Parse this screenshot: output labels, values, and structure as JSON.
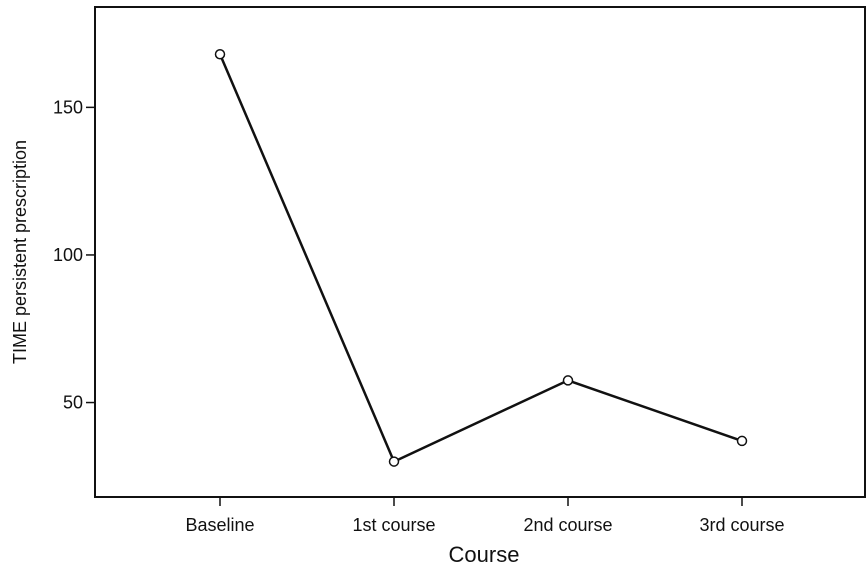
{
  "chart_data": {
    "type": "line",
    "xlabel": "Course",
    "ylabel": "TIME persistent prescription",
    "categories": [
      "Baseline",
      "1st course",
      "2nd course",
      "3rd course"
    ],
    "series": [
      {
        "values": [
          168,
          30,
          57.5,
          37
        ]
      }
    ],
    "yticks": [
      50,
      100,
      150
    ],
    "ylim": [
      18,
      184
    ],
    "grid": false,
    "line_color": "#111111",
    "marker": "open-circle"
  }
}
